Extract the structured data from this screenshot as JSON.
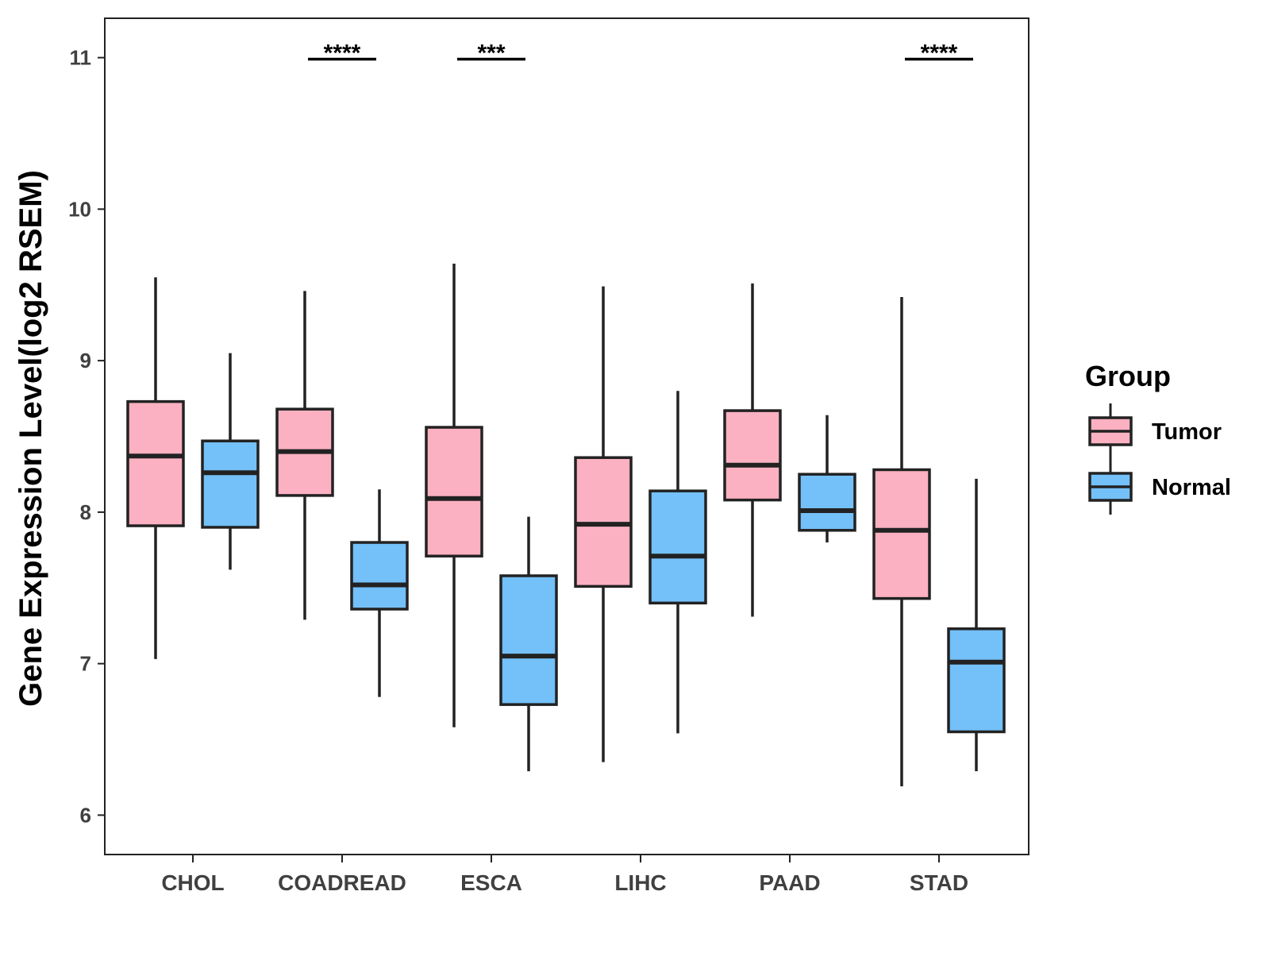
{
  "chart_data": {
    "type": "boxplot",
    "ylabel": "Gene Expression Level(log2 RSEM)",
    "xlabel": "",
    "ylim": [
      5.74,
      11.26
    ],
    "yticks": [
      6,
      7,
      8,
      9,
      10,
      11
    ],
    "ytick_labels": [
      "6",
      "7",
      "8",
      "9",
      "10",
      "11"
    ],
    "categories": [
      "CHOL",
      "COADREAD",
      "ESCA",
      "LIHC",
      "PAAD",
      "STAD"
    ],
    "series": [
      {
        "name": "Tumor",
        "color": "#FBB1C1",
        "boxes": [
          {
            "min": 7.03,
            "q1": 7.91,
            "median": 8.37,
            "q3": 8.73,
            "max": 9.55
          },
          {
            "min": 7.29,
            "q1": 8.11,
            "median": 8.4,
            "q3": 8.68,
            "max": 9.46
          },
          {
            "min": 6.58,
            "q1": 7.71,
            "median": 8.09,
            "q3": 8.56,
            "max": 9.64
          },
          {
            "min": 6.35,
            "q1": 7.51,
            "median": 7.92,
            "q3": 8.36,
            "max": 9.49
          },
          {
            "min": 7.31,
            "q1": 8.08,
            "median": 8.31,
            "q3": 8.67,
            "max": 9.51
          },
          {
            "min": 6.19,
            "q1": 7.43,
            "median": 7.88,
            "q3": 8.28,
            "max": 9.42
          }
        ]
      },
      {
        "name": "Normal",
        "color": "#74C0F8",
        "boxes": [
          {
            "min": 7.62,
            "q1": 7.9,
            "median": 8.26,
            "q3": 8.47,
            "max": 9.05
          },
          {
            "min": 6.78,
            "q1": 7.36,
            "median": 7.52,
            "q3": 7.8,
            "max": 8.15
          },
          {
            "min": 6.29,
            "q1": 6.73,
            "median": 7.05,
            "q3": 7.58,
            "max": 7.97
          },
          {
            "min": 6.54,
            "q1": 7.4,
            "median": 7.71,
            "q3": 8.14,
            "max": 8.8
          },
          {
            "min": 7.8,
            "q1": 7.88,
            "median": 8.01,
            "q3": 8.25,
            "max": 8.64
          },
          {
            "min": 6.29,
            "q1": 6.55,
            "median": 7.01,
            "q3": 7.23,
            "max": 8.22
          }
        ]
      }
    ],
    "significance": [
      {
        "category": "COADREAD",
        "label": "****",
        "y": 10.99
      },
      {
        "category": "ESCA",
        "label": "***",
        "y": 10.99
      },
      {
        "category": "STAD",
        "label": "****",
        "y": 10.99
      }
    ],
    "legend": {
      "title": "Group",
      "position": "right",
      "entries": [
        "Tumor",
        "Normal"
      ]
    },
    "grid": false
  }
}
